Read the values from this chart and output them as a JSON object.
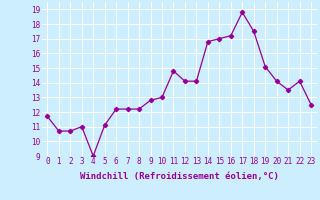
{
  "x": [
    0,
    1,
    2,
    3,
    4,
    5,
    6,
    7,
    8,
    9,
    10,
    11,
    12,
    13,
    14,
    15,
    16,
    17,
    18,
    19,
    20,
    21,
    22,
    23
  ],
  "y": [
    11.7,
    10.7,
    10.7,
    11.0,
    9.0,
    11.1,
    12.2,
    12.2,
    12.2,
    12.8,
    13.0,
    14.8,
    14.1,
    14.1,
    16.8,
    17.0,
    17.2,
    18.8,
    17.5,
    15.1,
    14.1,
    13.5,
    14.1,
    12.5
  ],
  "line_color": "#990099",
  "marker": "D",
  "markersize": 2.2,
  "linewidth": 0.9,
  "bg_color": "#cceeff",
  "grid_color": "#ffffff",
  "xlabel": "Windchill (Refroidissement éolien,°C)",
  "xlabel_color": "#990099",
  "xlabel_fontsize": 6.5,
  "tick_color": "#990099",
  "tick_fontsize": 5.5,
  "ylim": [
    9,
    19.5
  ],
  "yticks": [
    9,
    10,
    11,
    12,
    13,
    14,
    15,
    16,
    17,
    18,
    19
  ],
  "xticks": [
    0,
    1,
    2,
    3,
    4,
    5,
    6,
    7,
    8,
    9,
    10,
    11,
    12,
    13,
    14,
    15,
    16,
    17,
    18,
    19,
    20,
    21,
    22,
    23
  ]
}
